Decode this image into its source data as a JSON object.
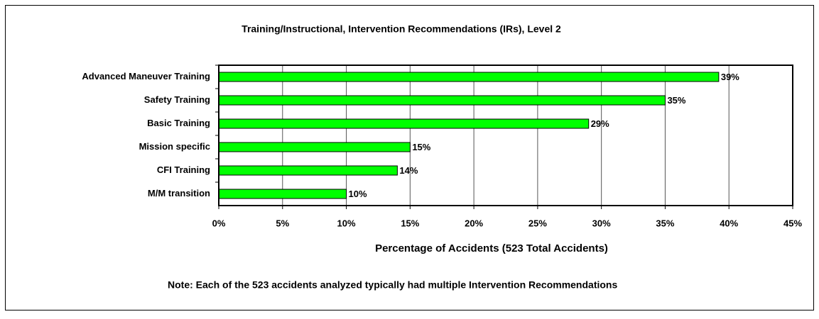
{
  "chart_data": {
    "type": "bar",
    "orientation": "horizontal",
    "title": "Training/Instructional, Intervention Recommendations (IRs), Level 2",
    "xlabel": "Percentage of Accidents (523 Total Accidents)",
    "note": "Note:  Each of the 523 accidents analyzed typically had multiple Intervention Recommendations",
    "categories": [
      "Advanced Maneuver Training",
      "Safety Training",
      "Basic Training",
      "Mission specific",
      "CFI Training",
      "M/M transition"
    ],
    "values": [
      39.2,
      35,
      29,
      15,
      14,
      10
    ],
    "value_labels": [
      "39%",
      "35%",
      "29%",
      "15%",
      "14%",
      "10%"
    ],
    "color": "#00ff00",
    "xlim": [
      0,
      45
    ],
    "xticks": [
      {
        "value": 0,
        "label": "0%"
      },
      {
        "value": 5,
        "label": "5%"
      },
      {
        "value": 10,
        "label": "10%"
      },
      {
        "value": 15,
        "label": "15%"
      },
      {
        "value": 20,
        "label": "20%"
      },
      {
        "value": 25,
        "label": "25%"
      },
      {
        "value": 30,
        "label": "30%"
      },
      {
        "value": 35,
        "label": "35%"
      },
      {
        "value": 40,
        "label": "40%"
      },
      {
        "value": 45,
        "label": "45%"
      }
    ],
    "grid": true
  }
}
